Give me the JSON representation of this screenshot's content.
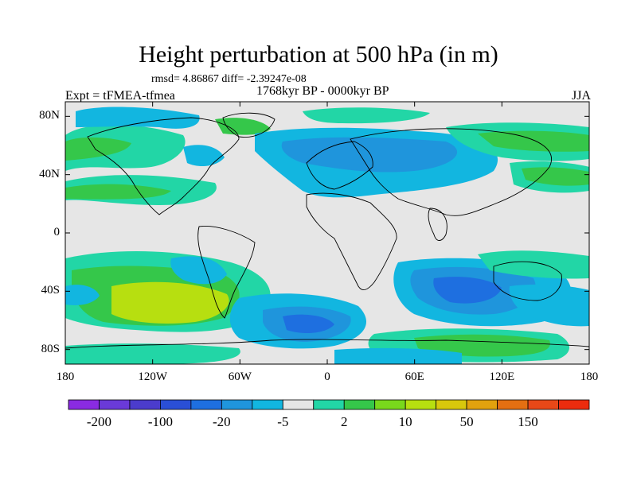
{
  "title": "Height perturbation at 500 hPa (in m)",
  "stats": "rmsd= 4.86867 diff= -2.39247e-08",
  "period": "1768kyr BP - 0000kyr BP",
  "experiment": "Expt = tFMEA-tfmea",
  "season": "JJA",
  "lat_axis": [
    {
      "label": "80N",
      "lat": 80
    },
    {
      "label": "40N",
      "lat": 40
    },
    {
      "label": "0",
      "lat": 0
    },
    {
      "label": "40S",
      "lat": -40
    },
    {
      "label": "80S",
      "lat": -80
    }
  ],
  "lon_axis": [
    {
      "label": "180",
      "lon": -180
    },
    {
      "label": "120W",
      "lon": -120
    },
    {
      "label": "60W",
      "lon": -60
    },
    {
      "label": "0",
      "lon": 0
    },
    {
      "label": "60E",
      "lon": 60
    },
    {
      "label": "120E",
      "lon": 120
    },
    {
      "label": "180",
      "lon": 180
    }
  ],
  "colorbar": {
    "colors": [
      "#8a2be2",
      "#6a3ad8",
      "#4b3ccc",
      "#2a4fd6",
      "#1e6fe0",
      "#1f95dc",
      "#12b6e0",
      "#e6e6e6",
      "#22d6a6",
      "#35c74a",
      "#79d81c",
      "#b7df10",
      "#d8c80c",
      "#e2a20e",
      "#e46f12",
      "#e84818",
      "#ec2c0e"
    ],
    "labels": [
      {
        "text": "-200",
        "after_box": 1
      },
      {
        "text": "-100",
        "after_box": 3
      },
      {
        "text": "-20",
        "after_box": 5
      },
      {
        "text": "-5",
        "after_box": 7
      },
      {
        "text": "2",
        "after_box": 9
      },
      {
        "text": "10",
        "after_box": 11
      },
      {
        "text": "50",
        "after_box": 13
      },
      {
        "text": "150",
        "after_box": 15
      }
    ]
  },
  "field_colors": {
    "background": "#e6e6e6",
    "light_blue": "#12b6e0",
    "mid_blue": "#1f95dc",
    "deep_blue": "#1e6fe0",
    "teal": "#22d6a6",
    "green": "#35c74a",
    "yellow_green": "#b7df10"
  }
}
